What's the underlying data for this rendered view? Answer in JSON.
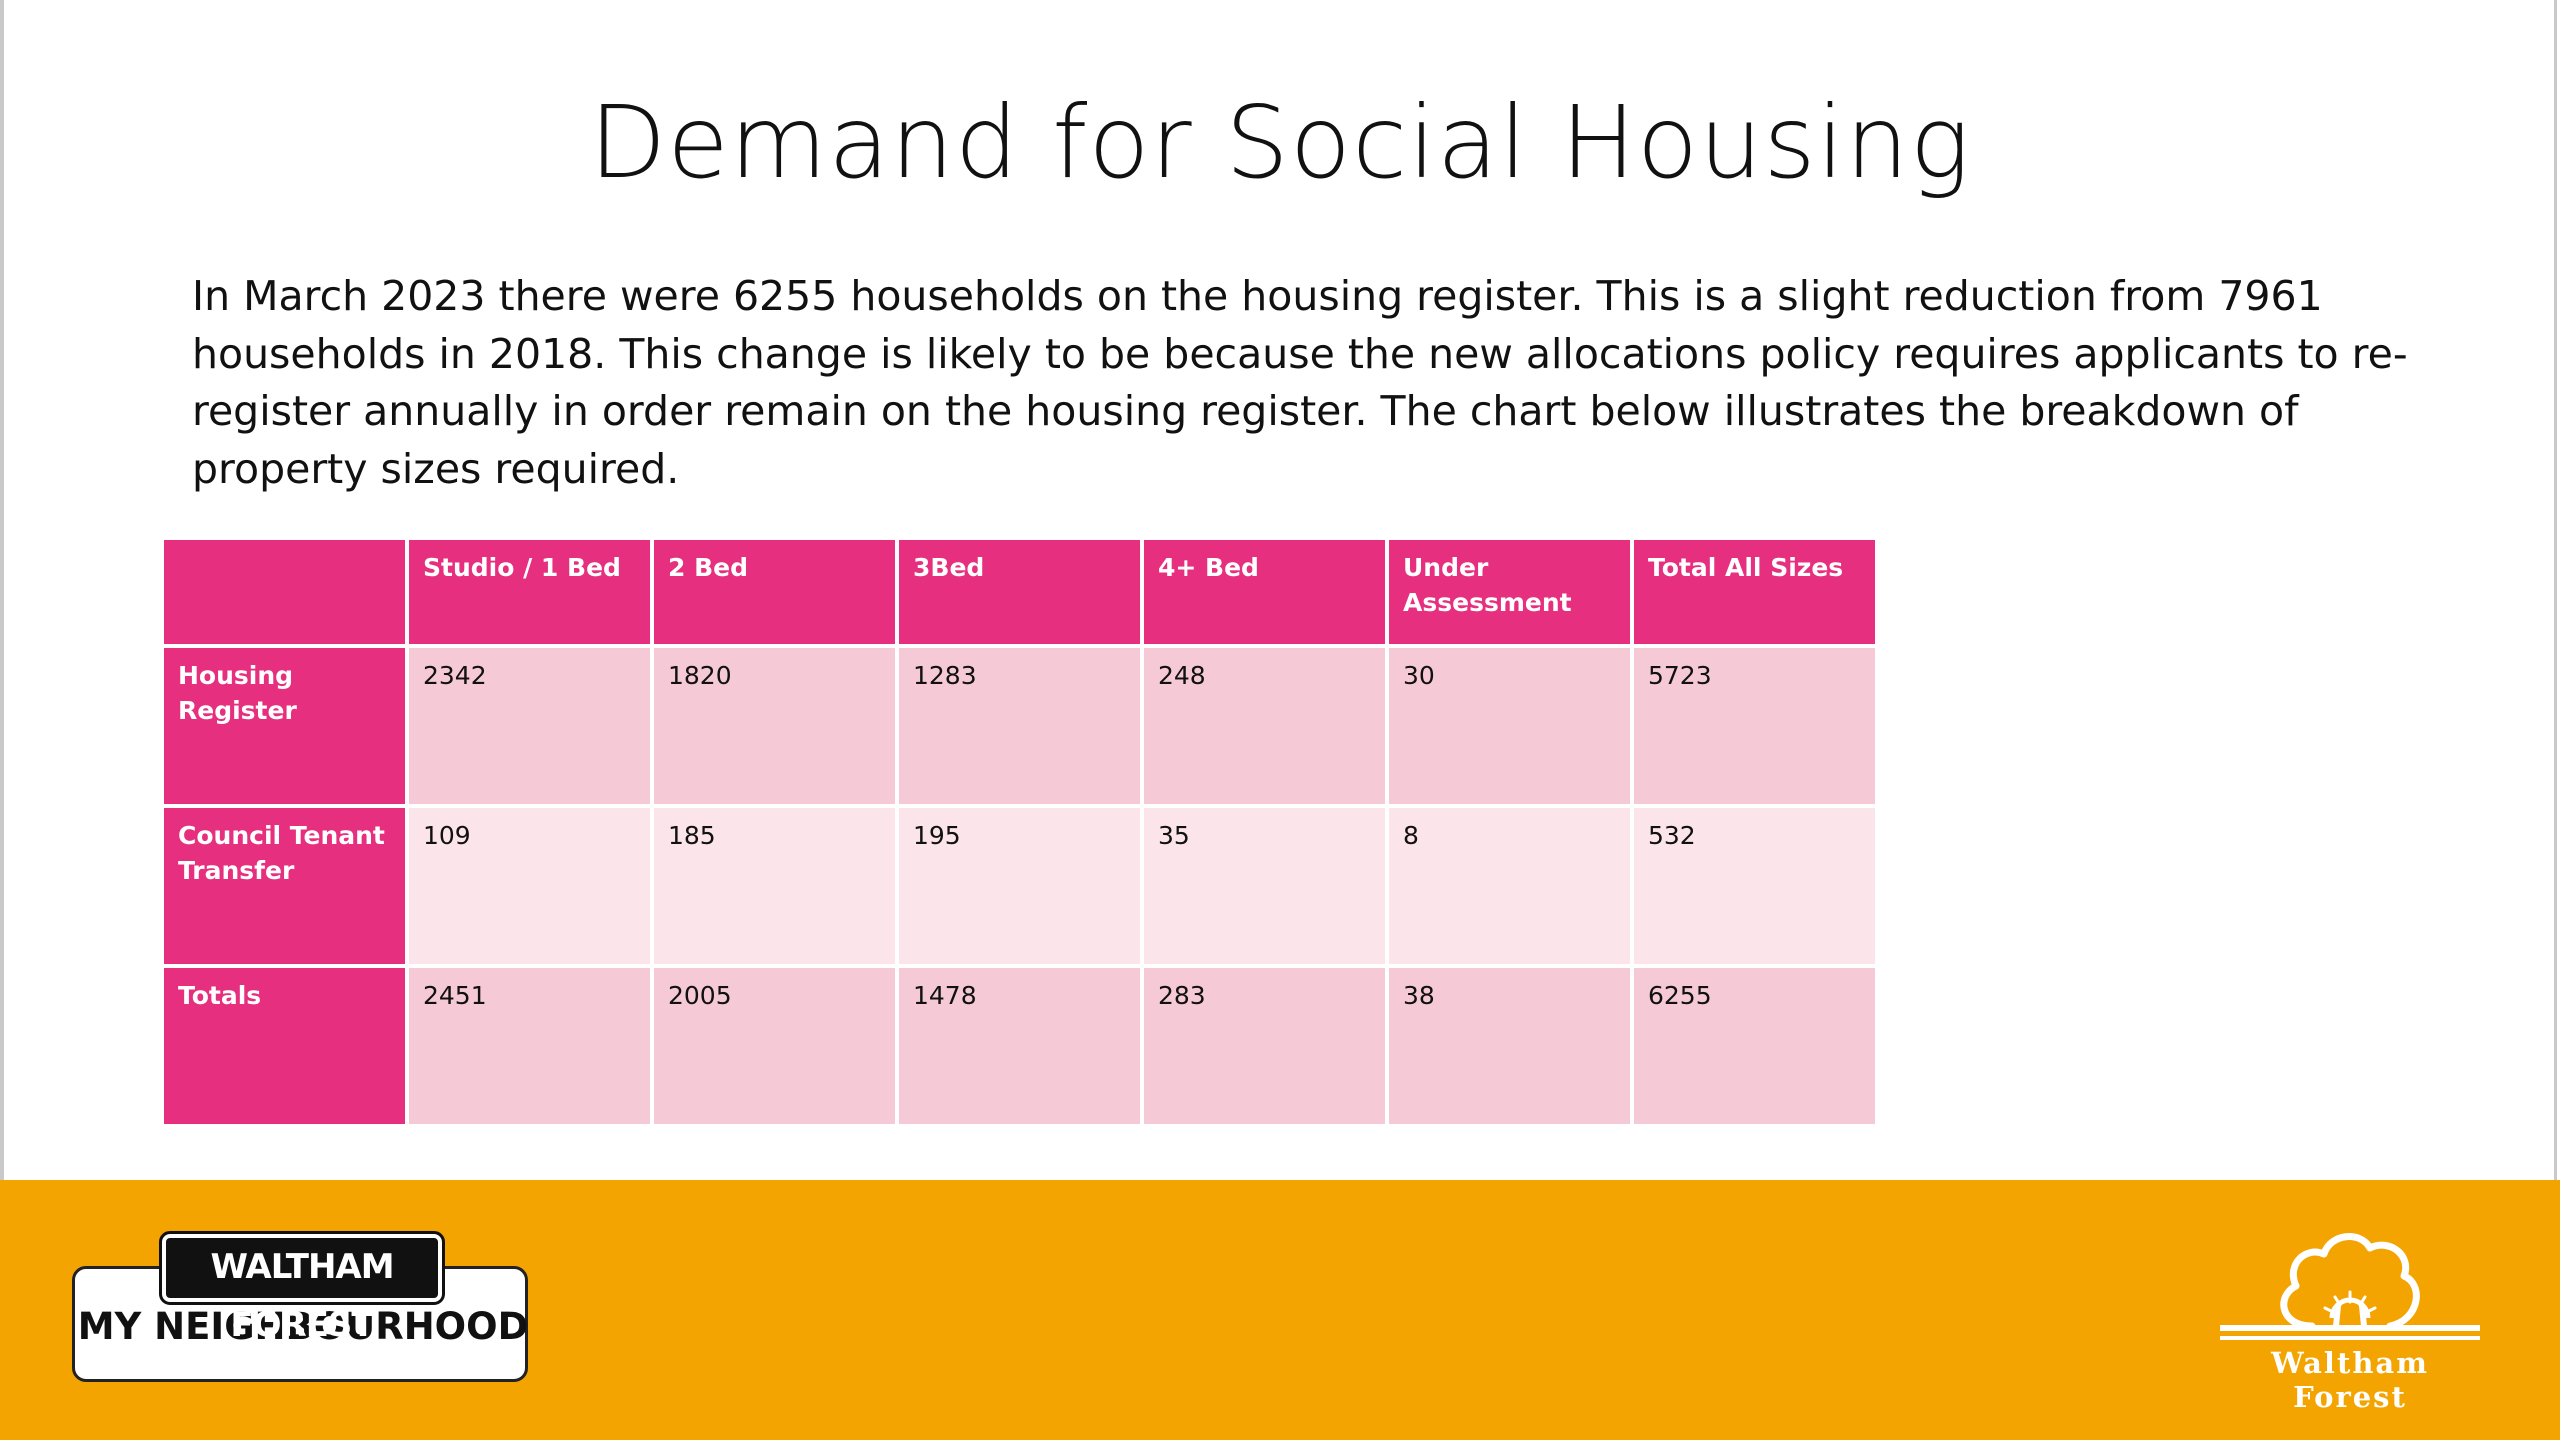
{
  "slide": {
    "title": "Demand for Social Housing",
    "intro": "In March 2023 there were 6255 households on the housing register. This is a slight reduction from 7961 households in 2018. This change is likely to be because the new allocations policy requires applicants to re-register annually in order remain on the housing register.  The chart below illustrates the breakdown of property sizes required."
  },
  "table": {
    "headers": [
      "",
      "Studio / 1 Bed",
      "2 Bed",
      "3Bed",
      "4+ Bed",
      "Under Assessment",
      "Total All Sizes"
    ],
    "rows": [
      {
        "label": "Housing Register",
        "cells": [
          "2342",
          "1820",
          "1283",
          "248",
          "30",
          "5723"
        ]
      },
      {
        "label": "Council Tenant Transfer",
        "cells": [
          "109",
          "185",
          "195",
          "35",
          "8",
          "532"
        ]
      },
      {
        "label": "Totals",
        "cells": [
          "2451",
          "2005",
          "1478",
          "283",
          "38",
          "6255"
        ]
      }
    ]
  },
  "footer": {
    "logo_left_top": "WALTHAM FOREST",
    "logo_left_bottom": "MY NEIGHBOURHOOD",
    "logo_right": "Waltham Forest"
  },
  "colors": {
    "header_pink": "#e6307f",
    "row_pink_dark": "#f6c9d6",
    "row_pink_light": "#fbe4ea",
    "footer_orange": "#f3a400"
  },
  "icons": {
    "tree": "tree-icon"
  }
}
